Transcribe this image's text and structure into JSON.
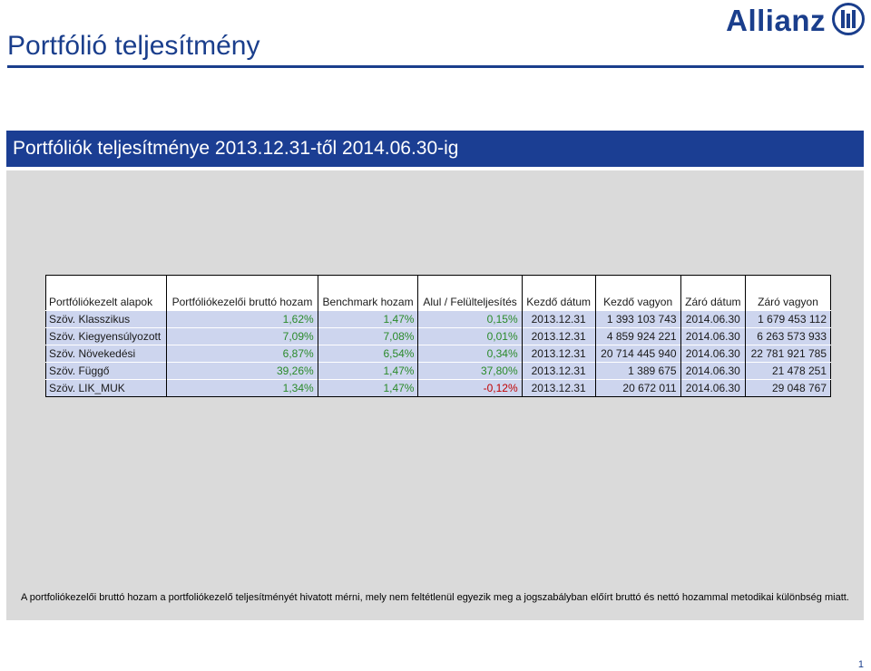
{
  "header": {
    "title": "Portfólió teljesítmény",
    "logo_text": "Allianz",
    "logo_icon": "allianz-eagle-icon"
  },
  "banner": {
    "text": "Portfóliók teljesítménye 2013.12.31-től 2014.06.30-ig"
  },
  "colors": {
    "brand_blue": "#1b3e93",
    "row_band": "#cdd5ee",
    "positive": "#2a8a2a",
    "negative": "#c00000"
  },
  "table": {
    "headers": [
      "Portfóliókezelt alapok",
      "Portfóliókezelői bruttó hozam",
      "Benchmark hozam",
      "Alul / Felülteljesítés",
      "Kezdő dátum",
      "Kezdő vagyon",
      "Záró dátum",
      "Záró vagyon"
    ],
    "rows": [
      [
        "Szöv. Klasszikus",
        "1,62%",
        "1,47%",
        "0,15%",
        "2013.12.31",
        "1 393 103 743",
        "2014.06.30",
        "1 679 453 112"
      ],
      [
        "Szöv. Kiegyensúlyozott",
        "7,09%",
        "7,08%",
        "0,01%",
        "2013.12.31",
        "4 859 924 221",
        "2014.06.30",
        "6 263 573 933"
      ],
      [
        "Szöv. Növekedési",
        "6,87%",
        "6,54%",
        "0,34%",
        "2013.12.31",
        "20 714 445 940",
        "2014.06.30",
        "22 781 921 785"
      ],
      [
        "Szöv. Függő",
        "39,26%",
        "1,47%",
        "37,80%",
        "2013.12.31",
        "1 389 675",
        "2014.06.30",
        "21 478 251"
      ],
      [
        "Szöv. LIK_MUK",
        "1,34%",
        "1,47%",
        "-0,12%",
        "2013.12.31",
        "20 672 011",
        "2014.06.30",
        "29 048 767"
      ]
    ]
  },
  "footnote": "A portfoliókezelői bruttó hozam a portfoliókezelő teljesítményét hivatott mérni, mely nem feltétlenül egyezik meg a jogszabályban előírt bruttó és nettó hozammal metodikai különbség miatt.",
  "page_number": "1"
}
